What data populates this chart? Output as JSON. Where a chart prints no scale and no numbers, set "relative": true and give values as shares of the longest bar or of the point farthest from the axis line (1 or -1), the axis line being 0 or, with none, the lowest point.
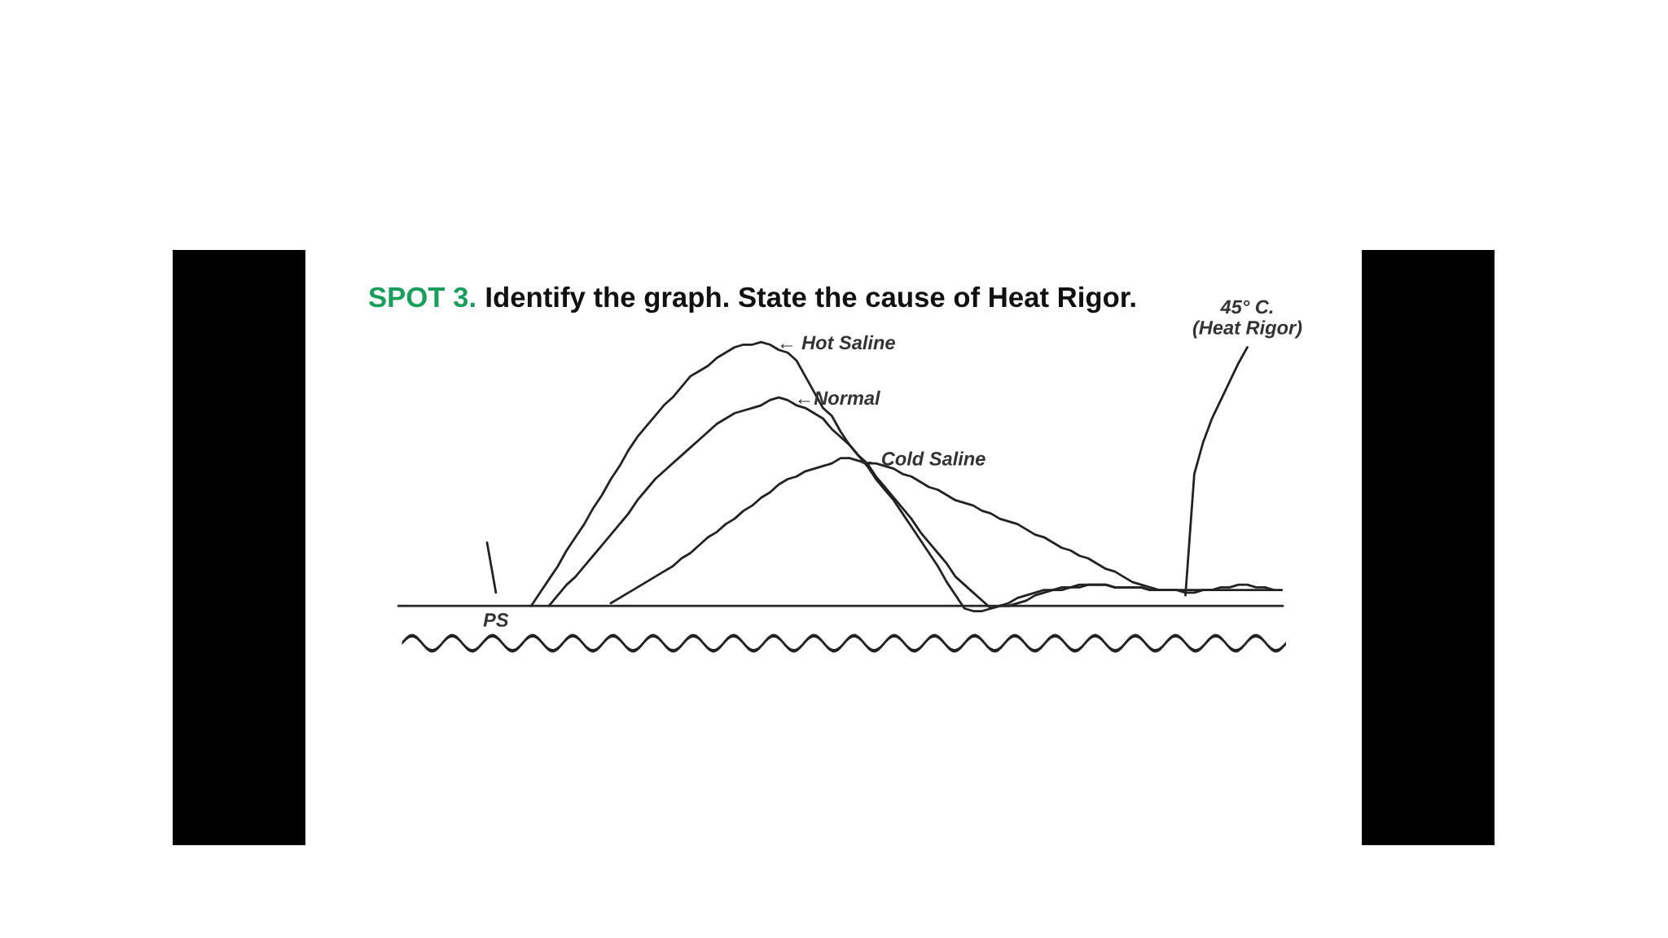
{
  "chart_data": {
    "type": "line",
    "relative": true,
    "title": "SPOT 3.",
    "subtitle": "Identify the graph. State the cause of Heat Rigor.",
    "marker": "none",
    "line_style": "solid",
    "categories": [
      null,
      null,
      null,
      null,
      null,
      null,
      null,
      null,
      null,
      null,
      null,
      null,
      null,
      null,
      null,
      null,
      null,
      null,
      null,
      null,
      null,
      null,
      null,
      null,
      null,
      null,
      null,
      null,
      null,
      null,
      null,
      null,
      null,
      null,
      null,
      null,
      null,
      null,
      null,
      null,
      null,
      null,
      null,
      null,
      null,
      null,
      null,
      null,
      null,
      null,
      null,
      null,
      null,
      null,
      null,
      null,
      null,
      null,
      null,
      null,
      null,
      null,
      null,
      null,
      null,
      null,
      null,
      null,
      null,
      null,
      null,
      null,
      null,
      null,
      null,
      null,
      null,
      null,
      null,
      null,
      null,
      null,
      null,
      null,
      null,
      null,
      null,
      null,
      null,
      null,
      null,
      null,
      null,
      null,
      null,
      null,
      null,
      null,
      null,
      null,
      null
    ],
    "series": [
      {
        "name": "← Hot Saline",
        "color": "#222222",
        "values": [
          null,
          null,
          null,
          null,
          null,
          null,
          null,
          null,
          null,
          null,
          null,
          null,
          null,
          null,
          null,
          0,
          0.05,
          0.1,
          0.15,
          0.21,
          0.26,
          0.31,
          0.37,
          0.42,
          0.48,
          0.53,
          0.59,
          0.64,
          0.68,
          0.72,
          0.76,
          0.79,
          0.83,
          0.87,
          0.89,
          0.91,
          0.94,
          0.96,
          0.98,
          0.99,
          0.99,
          1.0,
          0.99,
          0.97,
          0.96,
          0.93,
          0.87,
          0.81,
          0.75,
          0.72,
          0.66,
          0.61,
          0.57,
          0.53,
          0.48,
          0.44,
          0.4,
          0.35,
          0.3,
          0.25,
          0.2,
          0.15,
          0.09,
          0.04,
          -0.01,
          -0.02,
          -0.02,
          -0.01,
          0,
          0.01,
          0.03,
          0.04,
          0.05,
          0.06,
          0.06,
          0.07,
          0.07,
          0.08,
          0.08,
          0.08,
          0.08,
          0.07,
          0.07,
          0.07,
          0.07,
          0.06,
          0.06,
          null,
          null,
          null,
          null,
          null,
          null,
          null,
          null,
          null,
          null,
          null,
          null,
          null,
          null
        ]
      },
      {
        "name": "←Normal",
        "color": "#222222",
        "values": [
          null,
          null,
          null,
          null,
          null,
          null,
          null,
          null,
          null,
          null,
          null,
          null,
          null,
          null,
          null,
          null,
          null,
          0,
          0.04,
          0.08,
          0.11,
          0.15,
          0.19,
          0.23,
          0.27,
          0.31,
          0.35,
          0.4,
          0.44,
          0.48,
          0.51,
          0.54,
          0.57,
          0.6,
          0.63,
          0.66,
          0.69,
          0.71,
          0.73,
          0.74,
          0.75,
          0.76,
          0.78,
          0.79,
          0.78,
          0.76,
          0.75,
          0.73,
          0.71,
          0.67,
          0.64,
          0.61,
          0.57,
          0.54,
          0.49,
          0.45,
          0.41,
          0.37,
          0.33,
          0.28,
          0.24,
          0.2,
          0.16,
          0.11,
          0.08,
          0.05,
          0.02,
          -0.01,
          0,
          0,
          0.01,
          0.02,
          0.04,
          0.05,
          0.06,
          0.06,
          0.07,
          0.07,
          0.08,
          0.08,
          0.08,
          0.07,
          0.07,
          0.07,
          0.07,
          0.06,
          0.06,
          0.06,
          0.06,
          0.06,
          0.06,
          0.06,
          0.06,
          0.06,
          0.06,
          0.06,
          0.06,
          0.06,
          0.06,
          0.06,
          null
        ]
      },
      {
        "name": "← Cold Saline",
        "color": "#222222",
        "values": [
          null,
          null,
          null,
          null,
          null,
          null,
          null,
          null,
          null,
          null,
          null,
          null,
          null,
          null,
          null,
          null,
          null,
          null,
          null,
          null,
          null,
          null,
          null,
          null,
          0.01,
          0.03,
          0.05,
          0.07,
          0.09,
          0.11,
          0.13,
          0.15,
          0.18,
          0.2,
          0.23,
          0.26,
          0.28,
          0.31,
          0.33,
          0.36,
          0.38,
          0.41,
          0.43,
          0.46,
          0.48,
          0.49,
          0.51,
          0.52,
          0.53,
          0.54,
          0.56,
          0.56,
          0.55,
          0.54,
          0.54,
          0.53,
          0.52,
          0.5,
          0.49,
          0.47,
          0.45,
          0.44,
          0.42,
          0.4,
          0.39,
          0.38,
          0.36,
          0.35,
          0.33,
          0.32,
          0.31,
          0.29,
          0.27,
          0.26,
          0.24,
          0.22,
          0.21,
          0.19,
          0.18,
          0.16,
          0.14,
          0.13,
          0.11,
          0.09,
          0.08,
          0.07,
          0.06,
          0.06,
          0.06,
          0.05,
          0.05,
          0.06,
          0.06,
          0.07,
          0.07,
          0.08,
          0.08,
          0.07,
          0.07,
          0.06,
          0.06
        ]
      },
      {
        "name": "45° C.\n(Heat Rigor)",
        "color": "#222222",
        "values": [
          null,
          null,
          null,
          null,
          null,
          null,
          null,
          null,
          null,
          null,
          null,
          null,
          null,
          null,
          null,
          null,
          null,
          null,
          null,
          null,
          null,
          null,
          null,
          null,
          null,
          null,
          null,
          null,
          null,
          null,
          null,
          null,
          null,
          null,
          null,
          null,
          null,
          null,
          null,
          null,
          null,
          null,
          null,
          null,
          null,
          null,
          null,
          null,
          null,
          null,
          null,
          null,
          null,
          null,
          null,
          null,
          null,
          null,
          null,
          null,
          null,
          null,
          null,
          null,
          null,
          null,
          null,
          null,
          null,
          null,
          null,
          null,
          null,
          null,
          null,
          null,
          null,
          null,
          null,
          null,
          null,
          null,
          null,
          null,
          null,
          null,
          null,
          null,
          null,
          0.04,
          0.5,
          0.62,
          0.71,
          0.78,
          0.85,
          0.92,
          0.98,
          null,
          null,
          null,
          null
        ]
      },
      {
        "color": "#222222",
        "values": [
          null,
          null,
          null,
          null,
          null,
          null,
          null,
          null,
          null,
          null,
          0.24,
          0.05,
          null,
          null,
          null,
          null,
          null,
          null,
          null,
          null,
          null,
          null,
          null,
          null,
          null,
          null,
          null,
          null,
          null,
          null,
          null,
          null,
          null,
          null,
          null,
          null,
          null,
          null,
          null,
          null,
          null,
          null,
          null,
          null,
          null,
          null,
          null,
          null,
          null,
          null,
          null,
          null,
          null,
          null,
          null,
          null,
          null,
          null,
          null,
          null,
          null,
          null,
          null,
          null,
          null,
          null,
          null,
          null,
          null,
          null,
          null,
          null,
          null,
          null,
          null,
          null,
          null,
          null,
          null,
          null,
          null,
          null,
          null,
          null,
          null,
          null,
          null,
          null,
          null,
          null,
          null,
          null,
          null,
          null,
          null,
          null,
          null,
          null,
          null,
          null,
          null
        ]
      }
    ],
    "annotations": [
      "PS"
    ]
  }
}
